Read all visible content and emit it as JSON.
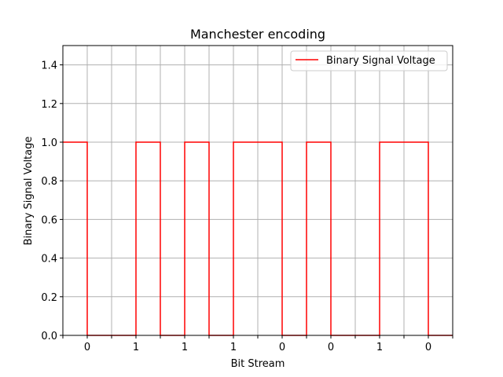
{
  "chart_data": {
    "type": "line",
    "title": "Manchester encoding",
    "xlabel": "Bit Stream",
    "ylabel": "Binary Signal Voltage",
    "xlim": [
      0,
      16
    ],
    "ylim": [
      0,
      1.5
    ],
    "x_tick_labels": [
      "0",
      "1",
      "1",
      "1",
      "0",
      "0",
      "1",
      "0"
    ],
    "y_ticks": [
      0.0,
      0.2,
      0.4,
      0.6,
      0.8,
      1.0,
      1.2,
      1.4
    ],
    "y_tick_labels": [
      "0.0",
      "0.2",
      "0.4",
      "0.6",
      "0.8",
      "1.0",
      "1.2",
      "1.4"
    ],
    "grid": true,
    "legend_position": "upper right",
    "series": [
      {
        "name": "Binary Signal Voltage",
        "color": "#ff0000",
        "step": "post",
        "x": [
          0,
          1,
          2,
          3,
          4,
          5,
          6,
          7,
          8,
          9,
          10,
          11,
          12,
          13,
          14,
          15,
          16
        ],
        "values": [
          1,
          0,
          0,
          1,
          0,
          1,
          0,
          1,
          1,
          0,
          1,
          0,
          0,
          1,
          1,
          0,
          0
        ]
      }
    ]
  }
}
